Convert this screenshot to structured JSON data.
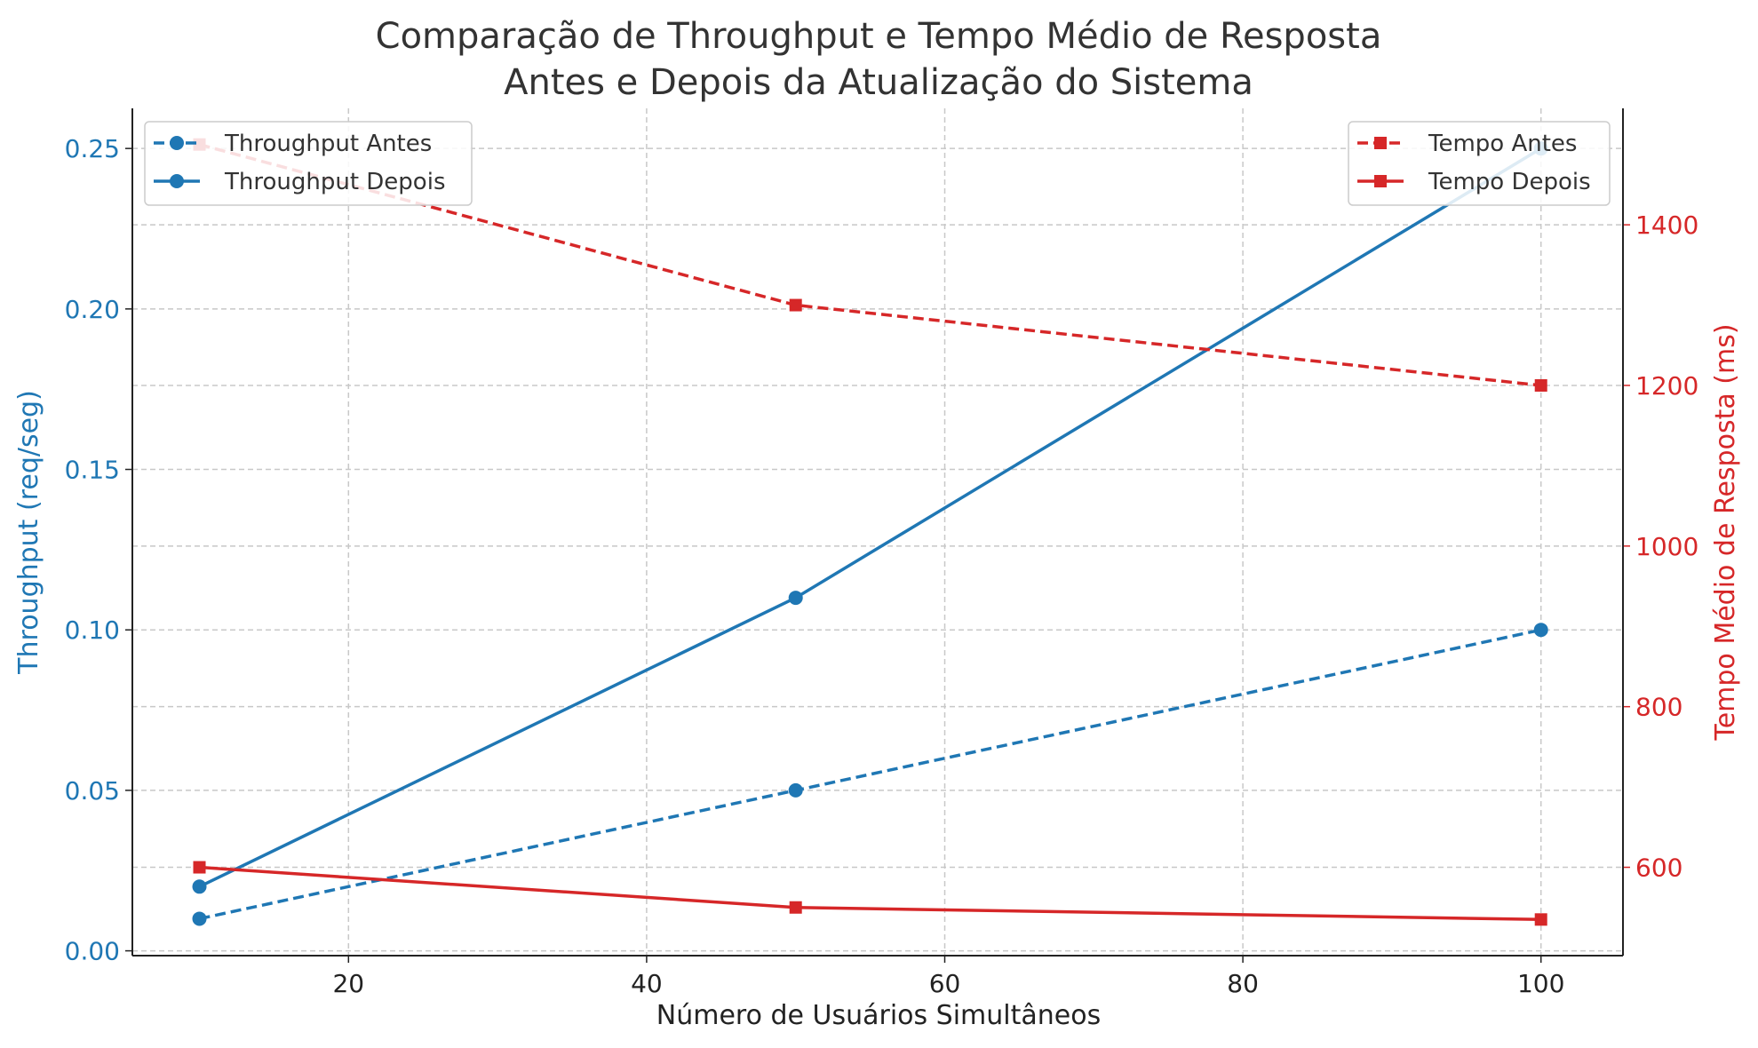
{
  "chart_data": {
    "type": "line",
    "title": "Comparação de Throughput e Tempo Médio de Resposta",
    "subtitle": "Antes e Depois da Atualização do Sistema",
    "xlabel": "Número de Usuários Simultâneos",
    "ylabel_left": "Throughput (req/seg)",
    "ylabel_right": "Tempo Médio de Resposta (ms)",
    "x": [
      10,
      50,
      100
    ],
    "xlim": [
      5.5,
      105.5
    ],
    "ylim_left": [
      -0.0015,
      0.2625
    ],
    "ylim_right": [
      490,
      1545
    ],
    "xticks": [
      20,
      40,
      60,
      80,
      100
    ],
    "yticks_left": [
      "0.00",
      "0.05",
      "0.10",
      "0.15",
      "0.20",
      "0.25"
    ],
    "yticks_right": [
      600,
      800,
      1000,
      1200,
      1400
    ],
    "grid": true,
    "colors": {
      "throughput": "#1f77b4",
      "tempo": "#d62728"
    },
    "series": [
      {
        "name": "Throughput Antes",
        "axis": "left",
        "style": "dashed",
        "marker": "circle",
        "values": [
          0.01,
          0.05,
          0.1
        ]
      },
      {
        "name": "Throughput Depois",
        "axis": "left",
        "style": "solid",
        "marker": "circle",
        "values": [
          0.02,
          0.11,
          0.25
        ]
      },
      {
        "name": "Tempo Antes",
        "axis": "right",
        "style": "dashed",
        "marker": "square",
        "values": [
          1500,
          1300,
          1200
        ]
      },
      {
        "name": "Tempo Depois",
        "axis": "right",
        "style": "solid",
        "marker": "square",
        "values": [
          600,
          550,
          535
        ]
      }
    ],
    "legends": [
      {
        "placement": "top-left",
        "series": [
          "Throughput Antes",
          "Throughput Depois"
        ]
      },
      {
        "placement": "top-right",
        "series": [
          "Tempo Antes",
          "Tempo Depois"
        ]
      }
    ]
  }
}
